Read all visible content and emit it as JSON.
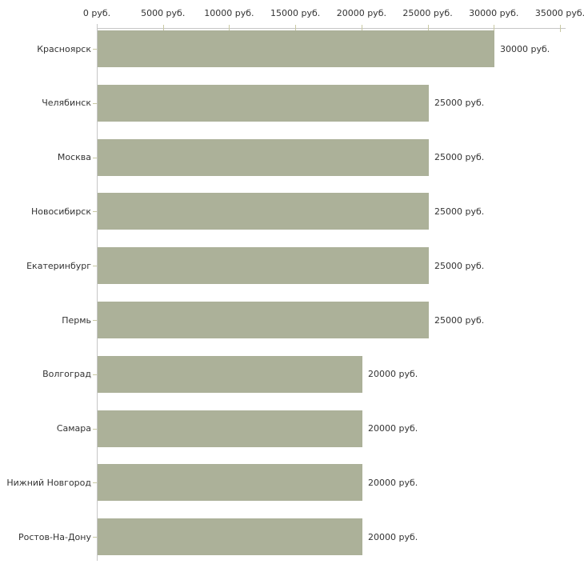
{
  "chart_data": {
    "type": "bar",
    "orientation": "horizontal",
    "title": "",
    "xlabel": "",
    "ylabel": "",
    "categories": [
      "Красноярск",
      "Челябинск",
      "Москва",
      "Новосибирск",
      "Екатеринбург",
      "Пермь",
      "Волгоград",
      "Самара",
      "Нижний Новгород",
      "Ростов-На-Дону"
    ],
    "values": [
      30000,
      25000,
      25000,
      25000,
      25000,
      25000,
      20000,
      20000,
      20000,
      20000
    ],
    "value_labels": [
      "30000 руб.",
      "25000 руб.",
      "25000 руб.",
      "25000 руб.",
      "25000 руб.",
      "25000 руб.",
      "20000 руб.",
      "20000 руб.",
      "20000 руб.",
      "20000 руб."
    ],
    "x_tick_labels": [
      "0 руб.",
      "5000 руб.",
      "10000 руб.",
      "15000 руб.",
      "20000 руб.",
      "25000 руб.",
      "30000 руб.",
      "35000 руб."
    ],
    "xlim": [
      0,
      35000
    ],
    "grid": "off",
    "legend": "none",
    "colors": {
      "bar": "#acb199",
      "axis": "#c6c6c6",
      "tick": "#c9c9a3",
      "text": "#333333",
      "background": "#ffffff"
    }
  }
}
